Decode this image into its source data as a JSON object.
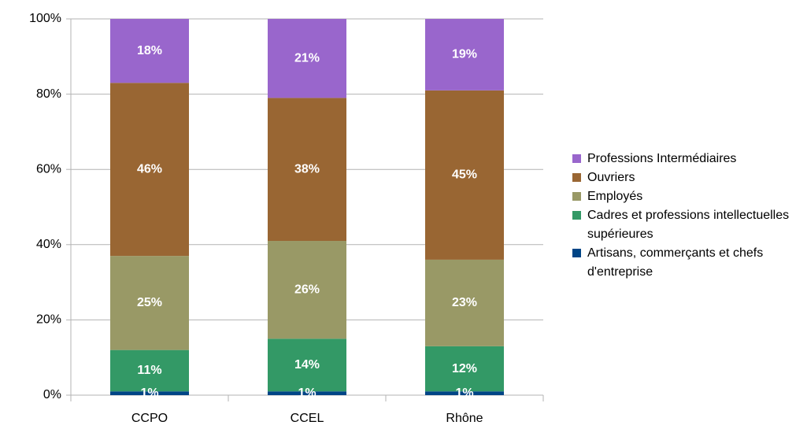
{
  "chart_data": {
    "type": "stacked_bar",
    "categories": [
      "CCPO",
      "CCEL",
      "Rhône"
    ],
    "series": [
      {
        "name": "Artisans, commerçants et chefs d'entreprise",
        "color": "#004586",
        "values": [
          1,
          1,
          1
        ],
        "value_labels": [
          "1%",
          "1%",
          "1%"
        ]
      },
      {
        "name": "Cadres et professions intellectuelles supérieures",
        "color": "#339966",
        "values": [
          11,
          14,
          12
        ],
        "value_labels": [
          "11%",
          "14%",
          "12%"
        ]
      },
      {
        "name": "Employés",
        "color": "#999966",
        "values": [
          25,
          26,
          23
        ],
        "value_labels": [
          "25%",
          "26%",
          "23%"
        ]
      },
      {
        "name": "Ouvriers",
        "color": "#996633",
        "values": [
          46,
          38,
          45
        ],
        "value_labels": [
          "46%",
          "38%",
          "45%"
        ]
      },
      {
        "name": "Professions Intermédiaires",
        "color": "#9966cc",
        "values": [
          18,
          21,
          19
        ],
        "value_labels": [
          "18%",
          "21%",
          "19%"
        ]
      }
    ],
    "ylim": [
      0,
      100
    ],
    "yticks": [
      {
        "value": 0,
        "label": "0%"
      },
      {
        "value": 20,
        "label": "20%"
      },
      {
        "value": 40,
        "label": "40%"
      },
      {
        "value": 60,
        "label": "60%"
      },
      {
        "value": 80,
        "label": "80%"
      },
      {
        "value": 100,
        "label": "100%"
      }
    ],
    "grid": true,
    "legend": "right"
  }
}
